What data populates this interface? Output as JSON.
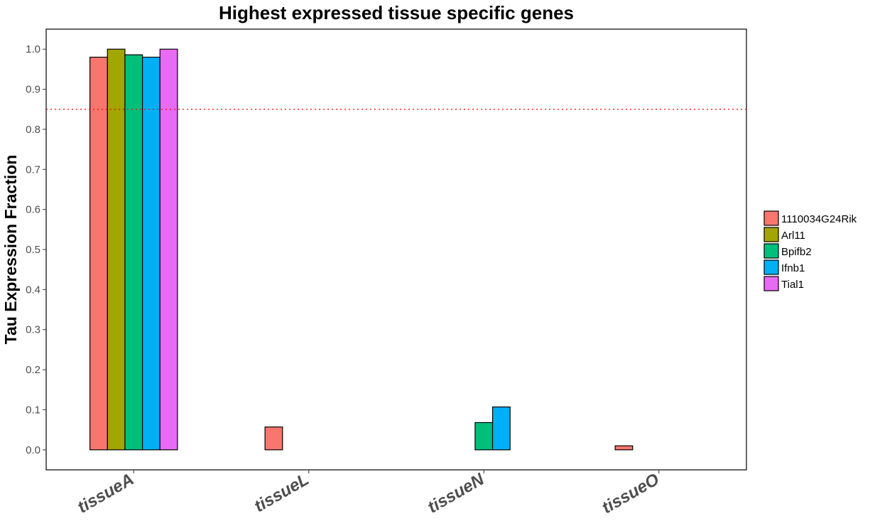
{
  "chart_data": {
    "type": "bar",
    "title": "Highest expressed tissue specific genes",
    "xlabel": "",
    "ylabel": "Tau Expression Fraction",
    "categories": [
      "tissueA",
      "tissueL",
      "tissueN",
      "tissueO"
    ],
    "series": [
      {
        "name": "1110034G24Rik",
        "color": "#F8766D",
        "values": [
          0.98,
          0.057,
          0.0,
          0.01
        ]
      },
      {
        "name": "Arl11",
        "color": "#A3A500",
        "values": [
          1.0,
          0.0,
          0.0,
          0.0
        ]
      },
      {
        "name": "Bpifb2",
        "color": "#00BF7D",
        "values": [
          0.986,
          0.0,
          0.068,
          0.0
        ]
      },
      {
        "name": "Ifnb1",
        "color": "#00B0F6",
        "values": [
          0.98,
          0.0,
          0.107,
          0.0
        ]
      },
      {
        "name": "Tial1",
        "color": "#E76BF3",
        "values": [
          1.0,
          0.0,
          0.0,
          0.0
        ]
      }
    ],
    "yticks": [
      "0.0",
      "0.1",
      "0.2",
      "0.3",
      "0.4",
      "0.5",
      "0.6",
      "0.7",
      "0.8",
      "0.9",
      "1.0"
    ],
    "ylim": [
      -0.05,
      1.05
    ],
    "threshold": {
      "value": 0.85,
      "color": "#FF0000",
      "style": "dotted"
    },
    "grid": false,
    "legend_position": "right"
  }
}
